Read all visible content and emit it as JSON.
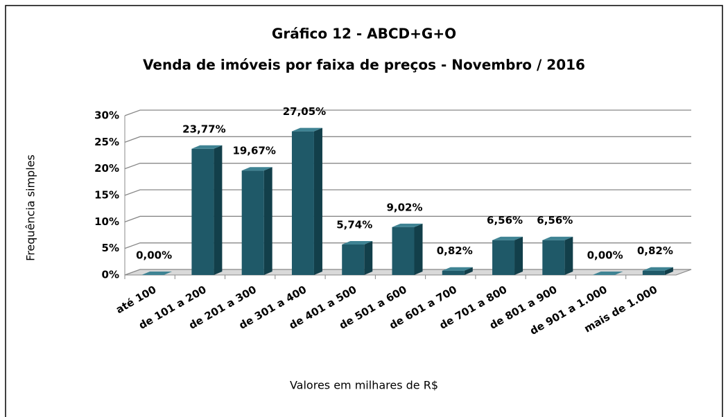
{
  "chart_data": {
    "type": "bar3d",
    "title": "Gráfico  12 - ABCD+G+O",
    "subtitle": "Venda de imóveis por faixa de preços - Novembro / 2016",
    "x_label": "Valores em milhares de R$",
    "y_label": "Frequência simples",
    "categories": [
      "até 100",
      "de 101 a 200",
      "de 201 a 300",
      "de 301 a 400",
      "de 401 a 500",
      "de 501 a 600",
      "de 601 a 700",
      "de 701 a 800",
      "de 801 a 900",
      "de 901 a 1.000",
      "mais de 1.000"
    ],
    "values": [
      0,
      23.77,
      19.67,
      27.05,
      5.74,
      9.02,
      0.82,
      6.56,
      6.56,
      0,
      0.82
    ],
    "value_labels": [
      "0,00%",
      "23,77%",
      "19,67%",
      "27,05%",
      "5,74%",
      "9,02%",
      "0,82%",
      "6,56%",
      "6,56%",
      "0,00%",
      "0,82%"
    ],
    "color": "#1f5968",
    "ylim": [
      0,
      30
    ],
    "yticks": [
      {
        "value": 0,
        "label": "0%"
      },
      {
        "value": 5,
        "label": "5%"
      },
      {
        "value": 10,
        "label": "10%"
      },
      {
        "value": 15,
        "label": "15%"
      },
      {
        "value": 20,
        "label": "20%"
      },
      {
        "value": 25,
        "label": "25%"
      },
      {
        "value": 30,
        "label": "30%"
      }
    ],
    "grid": true
  }
}
